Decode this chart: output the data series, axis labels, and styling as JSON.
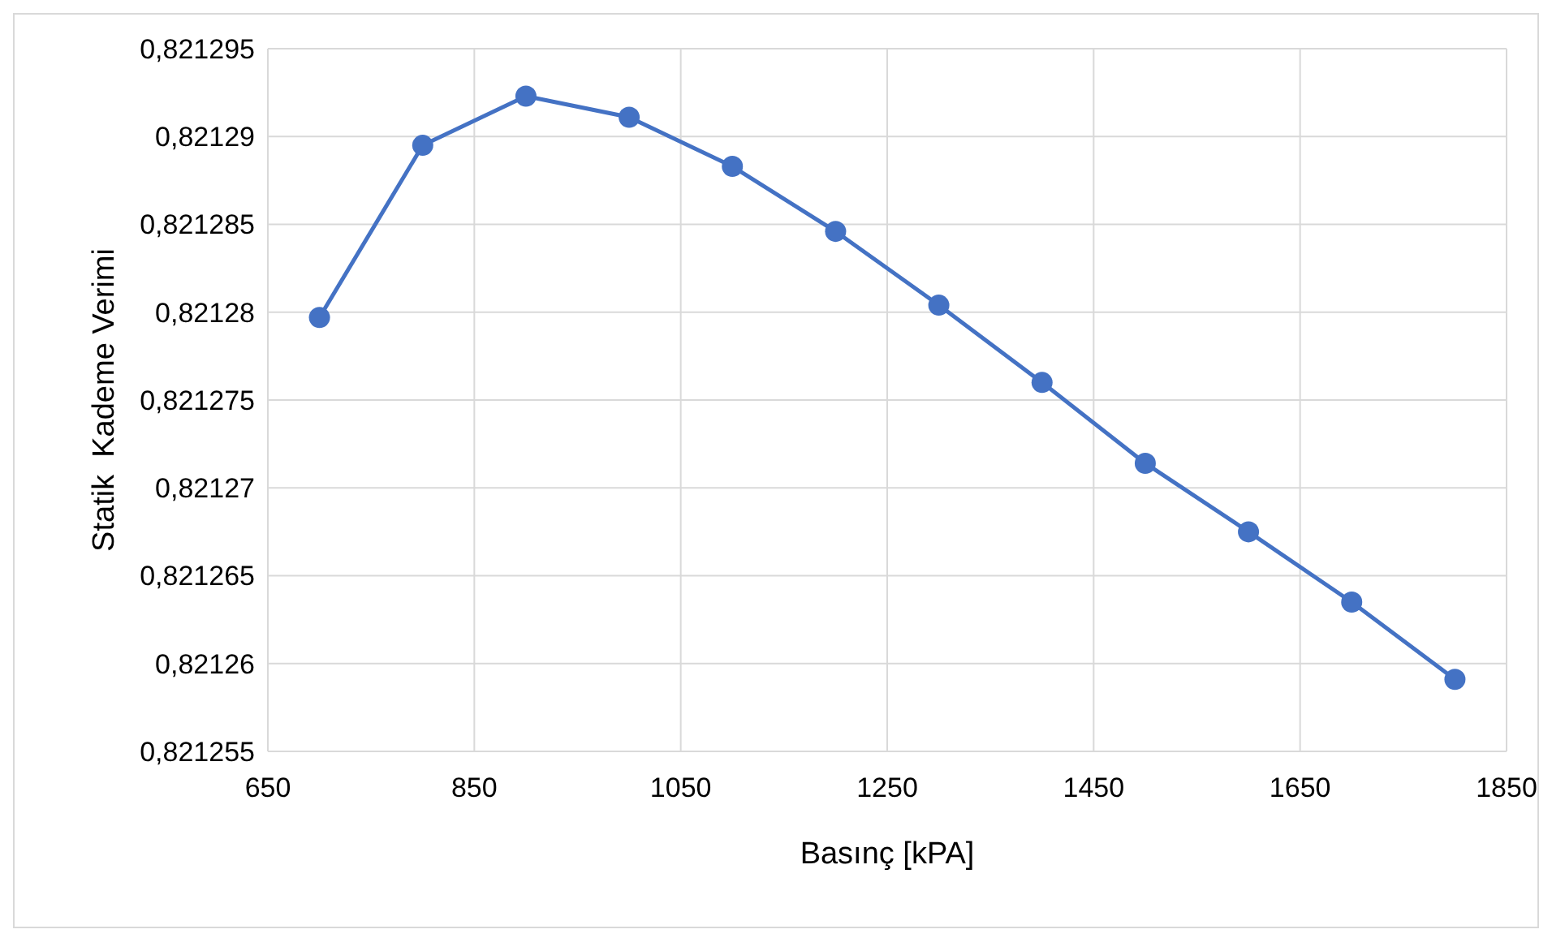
{
  "chart_data": {
    "type": "line",
    "xlabel": "Basınç [kPA]",
    "ylabel": "Statik  Kademe Verimi",
    "x": [
      700,
      800,
      900,
      1000,
      1100,
      1200,
      1300,
      1400,
      1500,
      1600,
      1700,
      1800
    ],
    "series": [
      {
        "color": "#4472c4",
        "values": [
          0.8212797,
          0.8212895,
          0.8212923,
          0.8212911,
          0.8212883,
          0.8212846,
          0.8212804,
          0.821276,
          0.8212714,
          0.8212675,
          0.8212635,
          0.8212591
        ]
      }
    ],
    "xlim": [
      650,
      1850
    ],
    "xticks": [
      650,
      850,
      1050,
      1250,
      1450,
      1650,
      1850
    ],
    "ylim": [
      0.821255,
      0.821295
    ],
    "yticks": [
      {
        "value": 0.821255,
        "label": "0,821255"
      },
      {
        "value": 0.82126,
        "label": "0,82126"
      },
      {
        "value": 0.821265,
        "label": "0,821265"
      },
      {
        "value": 0.82127,
        "label": "0,82127"
      },
      {
        "value": 0.821275,
        "label": "0,821275"
      },
      {
        "value": 0.82128,
        "label": "0,82128"
      },
      {
        "value": 0.821285,
        "label": "0,821285"
      },
      {
        "value": 0.82129,
        "label": "0,82129"
      },
      {
        "value": 0.821295,
        "label": "0,821295"
      }
    ],
    "grid": true,
    "marker": "circle",
    "line_style": "solid"
  }
}
